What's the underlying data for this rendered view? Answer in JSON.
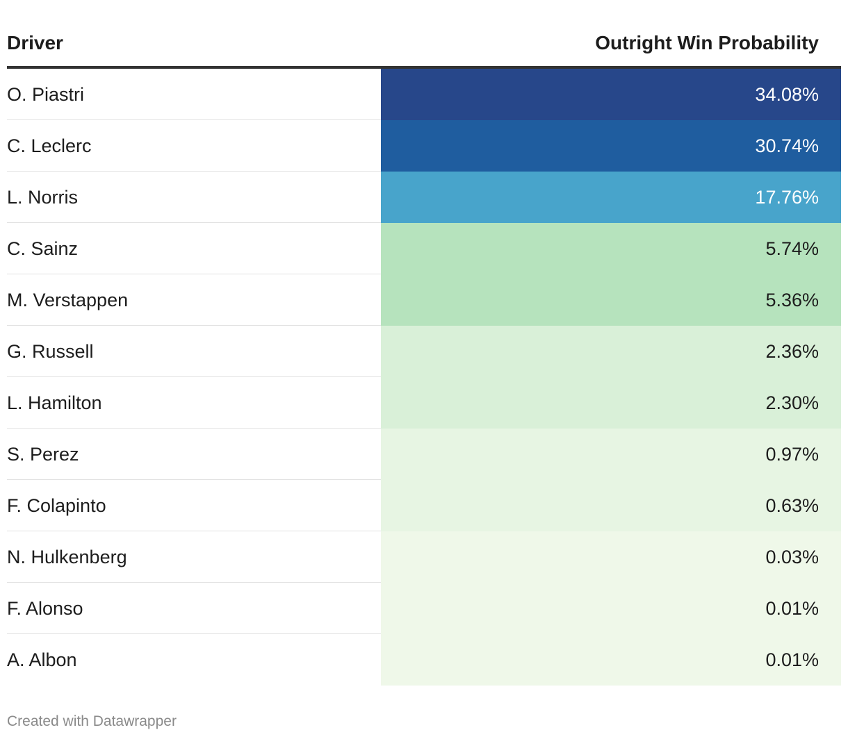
{
  "table": {
    "header": {
      "driver_label": "Driver",
      "prob_label": "Outright Win Probability"
    },
    "rows": [
      {
        "driver": "O. Piastri",
        "value_text": "34.08%",
        "value": 34.08,
        "bg": "#27478a",
        "fg": "#ffffff"
      },
      {
        "driver": "C. Leclerc",
        "value_text": "30.74%",
        "value": 30.74,
        "bg": "#1f5d9f",
        "fg": "#ffffff"
      },
      {
        "driver": "L. Norris",
        "value_text": "17.76%",
        "value": 17.76,
        "bg": "#48a4cb",
        "fg": "#ffffff"
      },
      {
        "driver": "C. Sainz",
        "value_text": "5.74%",
        "value": 5.74,
        "bg": "#b6e3bd",
        "fg": "#1d1d1d"
      },
      {
        "driver": "M. Verstappen",
        "value_text": "5.36%",
        "value": 5.36,
        "bg": "#b6e3bd",
        "fg": "#1d1d1d"
      },
      {
        "driver": "G. Russell",
        "value_text": "2.36%",
        "value": 2.36,
        "bg": "#d9f0d8",
        "fg": "#1d1d1d"
      },
      {
        "driver": "L. Hamilton",
        "value_text": "2.30%",
        "value": 2.3,
        "bg": "#d9f0d8",
        "fg": "#1d1d1d"
      },
      {
        "driver": "S. Perez",
        "value_text": "0.97%",
        "value": 0.97,
        "bg": "#e7f5e3",
        "fg": "#1d1d1d"
      },
      {
        "driver": "F. Colapinto",
        "value_text": "0.63%",
        "value": 0.63,
        "bg": "#e7f5e3",
        "fg": "#1d1d1d"
      },
      {
        "driver": "N. Hulkenberg",
        "value_text": "0.03%",
        "value": 0.03,
        "bg": "#eff8e9",
        "fg": "#1d1d1d"
      },
      {
        "driver": "F. Alonso",
        "value_text": "0.01%",
        "value": 0.01,
        "bg": "#eff8e9",
        "fg": "#1d1d1d"
      },
      {
        "driver": "A. Albon",
        "value_text": "0.01%",
        "value": 0.01,
        "bg": "#eff8e9",
        "fg": "#1d1d1d"
      }
    ]
  },
  "footer": {
    "credit": "Created with Datawrapper"
  },
  "chart_data": {
    "type": "table",
    "columns": [
      "Driver",
      "Outright Win Probability"
    ],
    "categories": [
      "O. Piastri",
      "C. Leclerc",
      "L. Norris",
      "C. Sainz",
      "M. Verstappen",
      "G. Russell",
      "L. Hamilton",
      "S. Perez",
      "F. Colapinto",
      "N. Hulkenberg",
      "F. Alonso",
      "A. Albon"
    ],
    "values": [
      34.08,
      30.74,
      17.76,
      5.74,
      5.36,
      2.36,
      2.3,
      0.97,
      0.63,
      0.03,
      0.01,
      0.01
    ],
    "value_format": "percent",
    "color_scale": "heatmap-blue-green"
  }
}
